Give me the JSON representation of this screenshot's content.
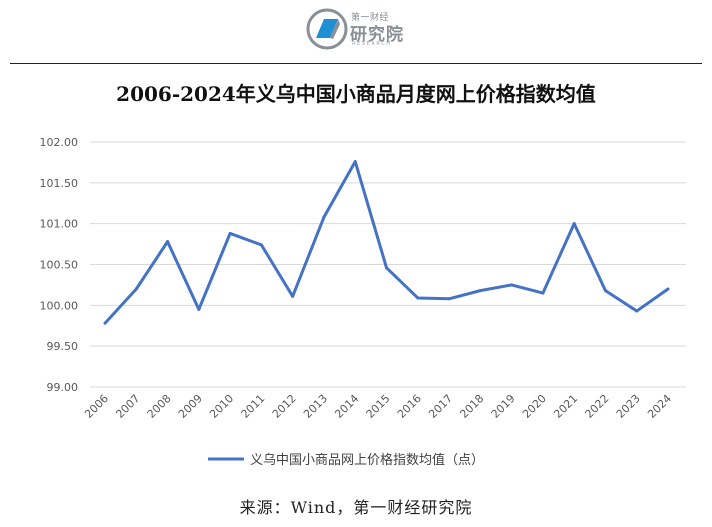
{
  "logo": {
    "top_text": "第一财经",
    "main_text": "研究院",
    "sub_text": "RESEARCH"
  },
  "source": "来源：Wind，第一财经研究院",
  "colors": {
    "line": "#4472C4",
    "grid": "#d9d9d9",
    "logo_blue": "#1f8fd6"
  },
  "chart_data": {
    "type": "line",
    "title": "2006-2024年义乌中国小商品月度网上价格指数均值",
    "categories": [
      "2006",
      "2007",
      "2008",
      "2009",
      "2010",
      "2011",
      "2012",
      "2013",
      "2014",
      "2015",
      "2016",
      "2017",
      "2018",
      "2019",
      "2020",
      "2021",
      "2022",
      "2023",
      "2024"
    ],
    "series": [
      {
        "name": "义乌中国小商品网上价格指数均值（点）",
        "values": [
          99.78,
          100.2,
          100.78,
          99.95,
          100.88,
          100.74,
          100.11,
          101.08,
          101.76,
          100.46,
          100.09,
          100.08,
          100.18,
          100.25,
          100.15,
          101.0,
          100.18,
          99.93,
          100.2
        ]
      }
    ],
    "y_ticks": [
      "99.00",
      "99.50",
      "100.00",
      "100.50",
      "101.00",
      "101.50",
      "102.00"
    ],
    "ylim": [
      99.0,
      102.0
    ],
    "grid": true,
    "legend_position": "bottom"
  }
}
